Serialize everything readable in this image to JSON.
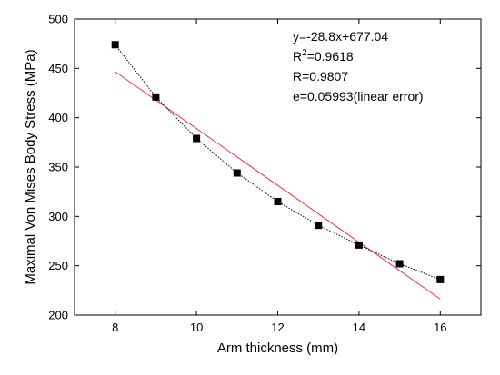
{
  "chart_data": {
    "type": "scatter",
    "title": "",
    "xlabel": "Arm thickness (mm)",
    "ylabel": "Maximal Von Mises Body Stress (MPa)",
    "xlim": [
      7,
      17
    ],
    "ylim": [
      200,
      500
    ],
    "xticks": [
      8,
      10,
      12,
      14,
      16
    ],
    "yticks": [
      200,
      250,
      300,
      350,
      400,
      450,
      500
    ],
    "grid": false,
    "series": [
      {
        "x": [
          8,
          9,
          10,
          11,
          12,
          13,
          14,
          15,
          16
        ],
        "y": [
          474,
          421,
          379,
          344,
          315,
          291,
          271,
          252,
          236
        ],
        "marker": "square",
        "line_style": "dotted",
        "color": "#000000"
      }
    ],
    "fit": {
      "slope": -28.8,
      "intercept": 677.04,
      "x_range": [
        8,
        16
      ],
      "color": "#e8343a"
    },
    "annotations": {
      "equation": "y=-28.8x+677.04",
      "r2_prefix": "R",
      "r2_exponent": "2",
      "r2_value": "=0.9618",
      "r": "R=0.9807",
      "error": "e=0.05993(linear error)"
    }
  }
}
